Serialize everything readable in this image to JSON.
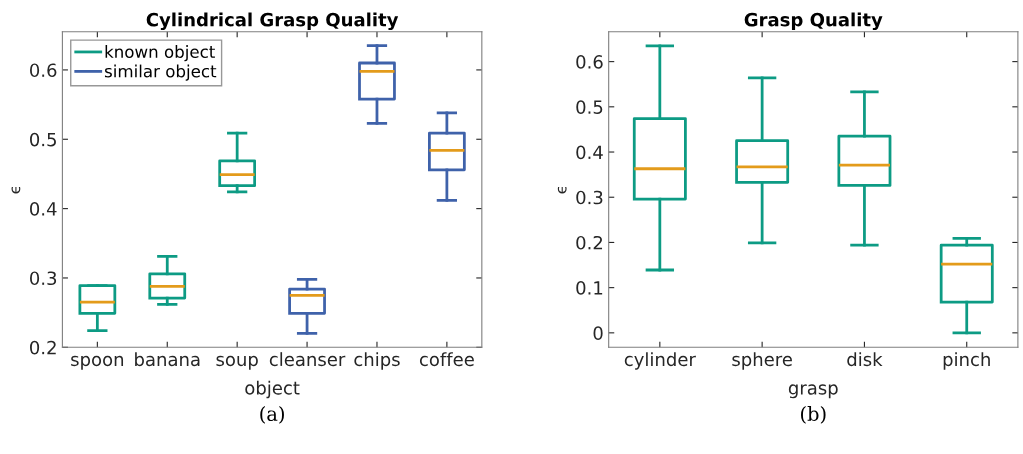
{
  "chart_data": [
    {
      "type": "box",
      "title": "Cylindrical Grasp Quality",
      "xlabel": "object",
      "ylabel": "ϵ",
      "annotations": [
        "(a)"
      ],
      "categories": [
        "spoon",
        "banana",
        "soup",
        "cleanser",
        "chips",
        "coffee"
      ],
      "ylim": [
        0.2,
        0.655
      ],
      "yticks": [
        0.2,
        0.3,
        0.4,
        0.5,
        0.6
      ],
      "legend": "top left",
      "series": [
        {
          "name": "known object",
          "color": "#0d9b84",
          "boxes": [
            {
              "low": 0.224,
              "q1": 0.249,
              "median": 0.265,
              "q3": 0.289,
              "high": 0.289
            },
            {
              "low": 0.262,
              "q1": 0.271,
              "median": 0.288,
              "q3": 0.306,
              "high": 0.331
            },
            {
              "low": 0.424,
              "q1": 0.433,
              "median": 0.449,
              "q3": 0.469,
              "high": 0.509
            },
            null,
            null,
            null
          ]
        },
        {
          "name": "similar object",
          "color": "#3f62aa",
          "boxes": [
            null,
            null,
            null,
            {
              "low": 0.22,
              "q1": 0.249,
              "median": 0.275,
              "q3": 0.284,
              "high": 0.298
            },
            {
              "low": 0.523,
              "q1": 0.558,
              "median": 0.598,
              "q3": 0.61,
              "high": 0.635
            },
            {
              "low": 0.412,
              "q1": 0.456,
              "median": 0.484,
              "q3": 0.509,
              "high": 0.538
            }
          ]
        }
      ]
    },
    {
      "type": "box",
      "title": "Grasp Quality",
      "xlabel": "grasp",
      "ylabel": "ϵ",
      "annotations": [
        "(b)"
      ],
      "categories": [
        "cylinder",
        "sphere",
        "disk",
        "pinch"
      ],
      "ylim": [
        -0.032,
        0.666
      ],
      "yticks": [
        0,
        0.1,
        0.2,
        0.3,
        0.4,
        0.5,
        0.6
      ],
      "series": [
        {
          "color": "#0d9b84",
          "boxes": [
            {
              "low": 0.139,
              "q1": 0.296,
              "median": 0.363,
              "q3": 0.474,
              "high": 0.635
            },
            {
              "low": 0.199,
              "q1": 0.333,
              "median": 0.367,
              "q3": 0.425,
              "high": 0.564
            },
            {
              "low": 0.194,
              "q1": 0.326,
              "median": 0.371,
              "q3": 0.435,
              "high": 0.533
            },
            {
              "low": 0.0,
              "q1": 0.068,
              "median": 0.152,
              "q3": 0.194,
              "high": 0.209
            }
          ]
        }
      ]
    }
  ]
}
